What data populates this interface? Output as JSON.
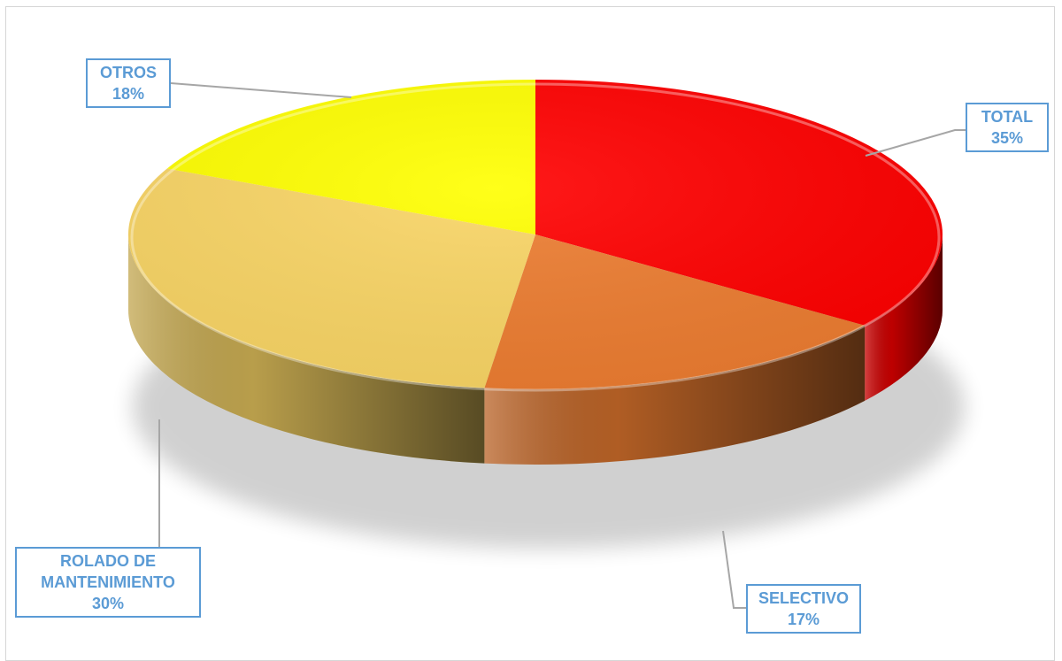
{
  "chart_data": {
    "type": "pie",
    "style": "3d",
    "categories": [
      "TOTAL",
      "SELECTIVO",
      "ROLADO DE MANTENIMIENTO",
      "OTROS"
    ],
    "values": [
      35,
      17,
      30,
      18
    ],
    "percent_labels": [
      "35%",
      "17%",
      "30%",
      "18%"
    ],
    "colors": [
      "#ff0000",
      "#ed7d31",
      "#f9d565",
      "#ffff00"
    ],
    "label_border_color": "#5b9bd5",
    "label_text_color": "#5b9bd5",
    "legend": "none",
    "title": ""
  }
}
